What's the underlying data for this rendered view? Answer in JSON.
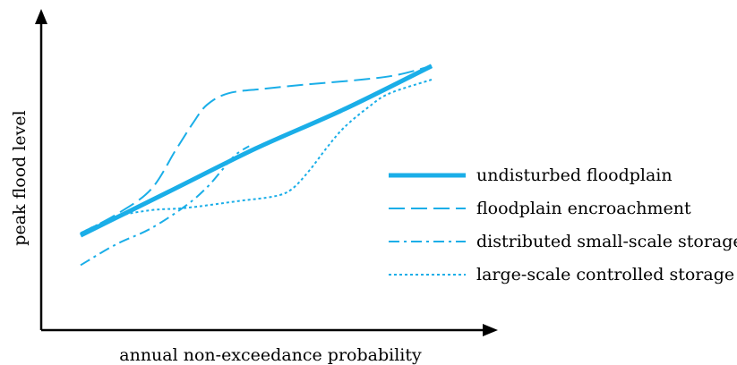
{
  "chart_data": {
    "type": "line",
    "title": "",
    "xlabel": "annual non-exceedance probability",
    "ylabel": "peak flood level",
    "xlim": [
      0,
      100
    ],
    "ylim": [
      0,
      100
    ],
    "grid": false,
    "ticks": false,
    "legend_position": "right",
    "series_color": "#1aaee8",
    "series": [
      {
        "name": "undisturbed floodplain",
        "style": "solid-thick",
        "x": [
          0,
          25,
          50,
          75,
          100
        ],
        "y": [
          23,
          42,
          61,
          78,
          97
        ]
      },
      {
        "name": "floodplain encroachment",
        "style": "long-dash",
        "x": [
          0,
          10,
          20,
          27,
          32,
          36,
          42,
          52,
          65,
          80,
          90,
          100
        ],
        "y": [
          24,
          32,
          43,
          60,
          72,
          80,
          85,
          87,
          89,
          91,
          93,
          97
        ]
      },
      {
        "name": "distributed small-scale storage",
        "style": "dash-dot",
        "x": [
          0,
          10,
          20,
          30,
          36,
          40,
          44,
          48
        ],
        "y": [
          10,
          19,
          26,
          36,
          44,
          51,
          58,
          62
        ]
      },
      {
        "name": "large-scale controlled storage",
        "style": "dotted",
        "x": [
          0,
          10,
          20,
          30,
          45,
          55,
          60,
          65,
          70,
          75,
          82,
          88,
          100
        ],
        "y": [
          24,
          31,
          34,
          35,
          38,
          40,
          43,
          51,
          61,
          70,
          79,
          85,
          91
        ]
      }
    ]
  }
}
